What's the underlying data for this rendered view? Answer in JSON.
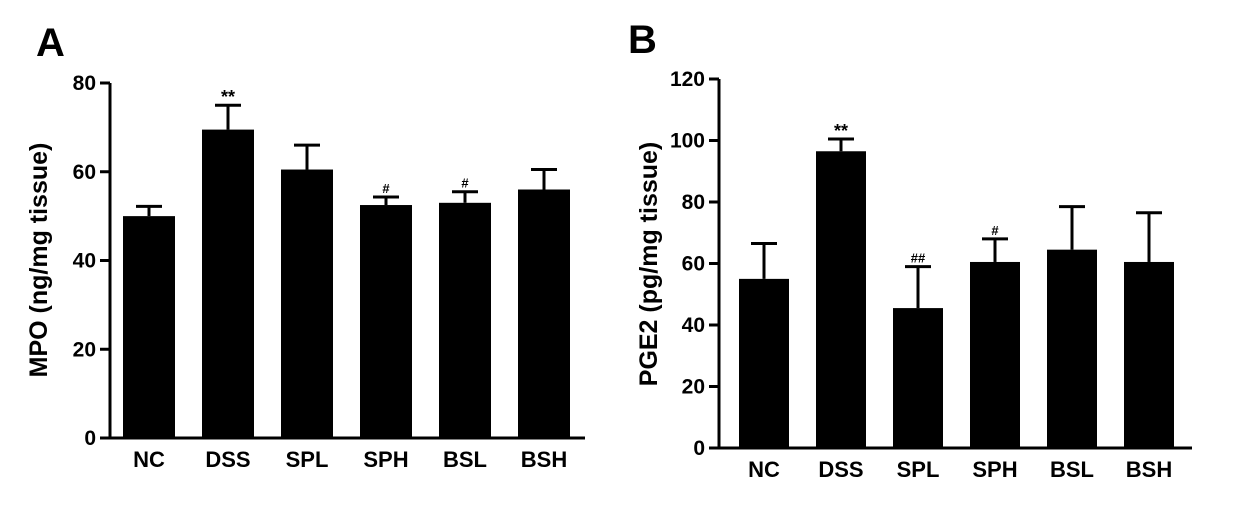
{
  "chart_data": [
    {
      "type": "bar",
      "panel": "A",
      "title": "",
      "xlabel": "",
      "ylabel": "MPO (ng/mg tissue)",
      "ylim": [
        0,
        80
      ],
      "yticks": [
        "0",
        "20",
        "40",
        "60",
        "80"
      ],
      "categories": [
        "NC",
        "DSS",
        "SPL",
        "SPH",
        "BSL",
        "BSH"
      ],
      "values": [
        50,
        69.5,
        60.5,
        52.5,
        53,
        56
      ],
      "errors": [
        2.2,
        5.5,
        5.5,
        1.8,
        2.5,
        4.5
      ],
      "annotations": [
        "",
        "**",
        "",
        "#",
        "#",
        ""
      ],
      "bar_color": "#000000"
    },
    {
      "type": "bar",
      "panel": "B",
      "title": "",
      "xlabel": "",
      "ylabel": "PGE2 (pg/mg tissue)",
      "ylim": [
        0,
        120
      ],
      "yticks": [
        "0",
        "20",
        "40",
        "60",
        "80",
        "100",
        "120"
      ],
      "categories": [
        "NC",
        "DSS",
        "SPL",
        "SPH",
        "BSL",
        "BSH"
      ],
      "values": [
        55,
        96.5,
        45.5,
        60.5,
        64.5,
        60.5
      ],
      "errors": [
        11.5,
        4,
        13.5,
        7.5,
        14,
        16
      ],
      "annotations": [
        "",
        "**",
        "##",
        "#",
        "",
        ""
      ],
      "bar_color": "#000000"
    }
  ]
}
